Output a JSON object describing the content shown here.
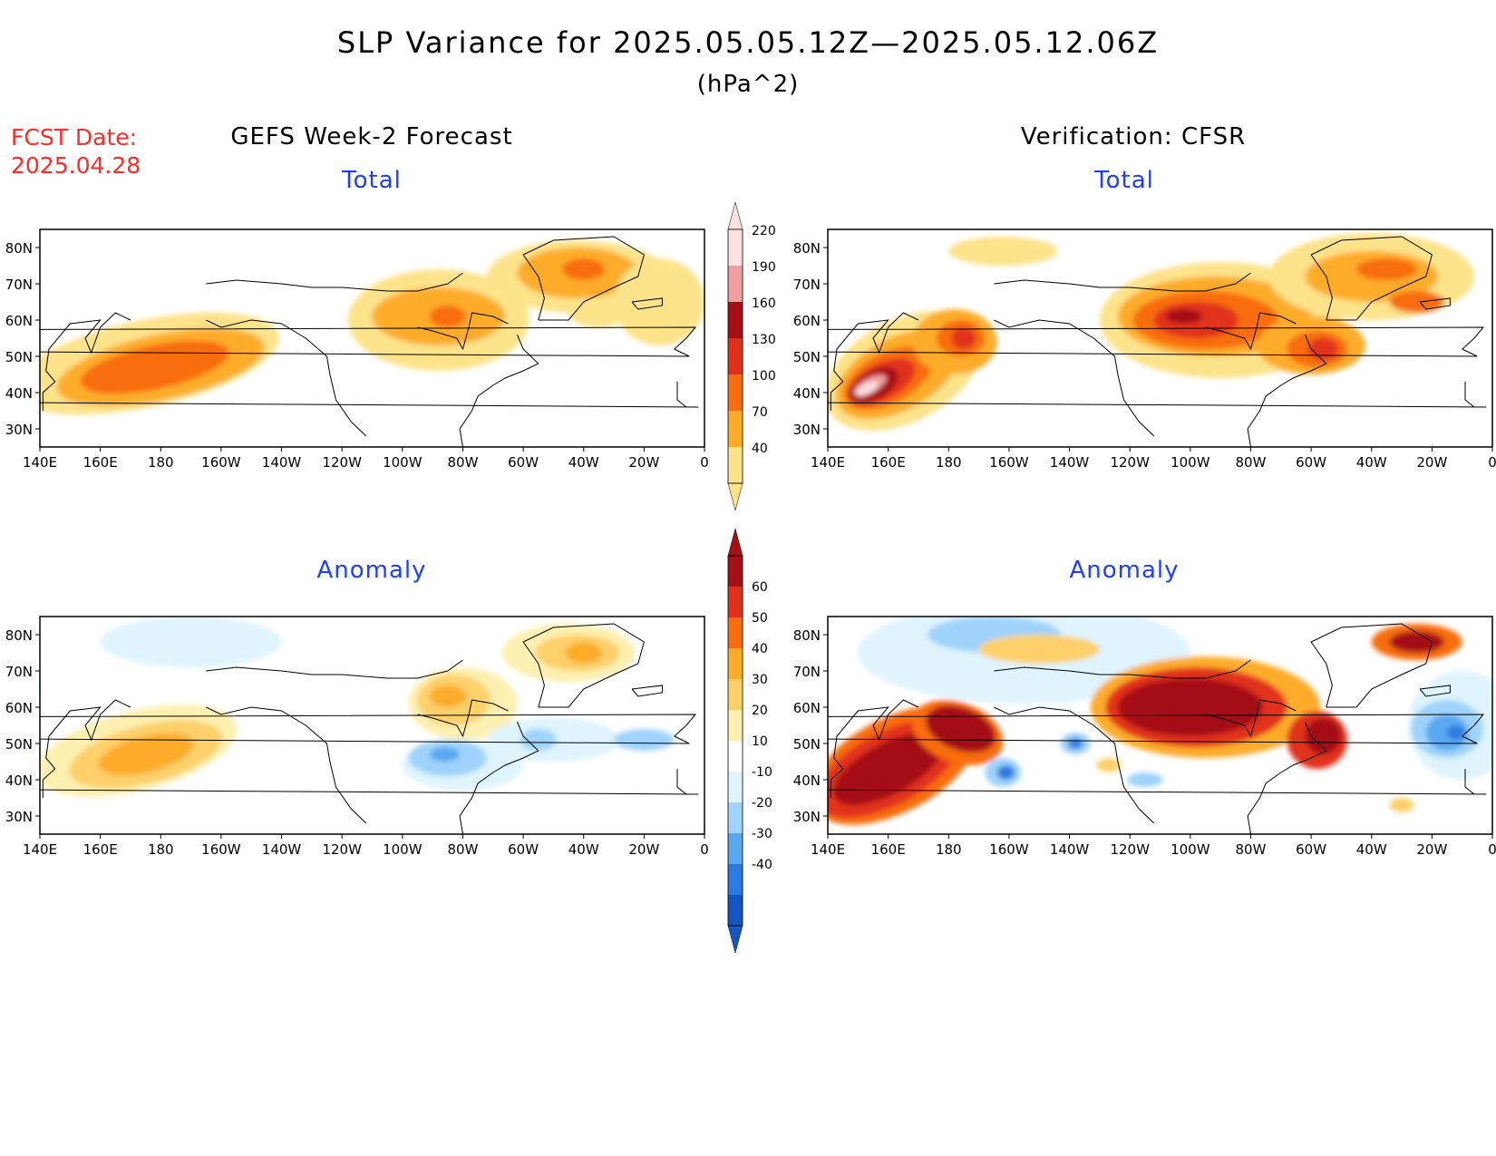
{
  "title": "SLP Variance for 2025.05.05.12Z—2025.05.12.06Z",
  "units": "(hPa^2)",
  "fcst_label": "FCST Date:",
  "fcst_date": "2025.04.28",
  "left_header": "GEFS Week-2 Forecast",
  "right_header": "Verification: CFSR",
  "panel_titles": {
    "total_left": "Total",
    "total_right": "Total",
    "anom_left": "Anomaly",
    "anom_right": "Anomaly"
  },
  "lat_labels": [
    "80N",
    "70N",
    "60N",
    "50N",
    "40N",
    "30N"
  ],
  "lon_labels": [
    "140E",
    "160E",
    "180",
    "160W",
    "140W",
    "120W",
    "100W",
    "80W",
    "60W",
    "40W",
    "20W",
    "0"
  ],
  "total_colorbar": {
    "levels": [
      40,
      70,
      100,
      130,
      160,
      190,
      220
    ],
    "colors": [
      "#fde38a",
      "#fdac2a",
      "#f86d10",
      "#e1301a",
      "#a50f15",
      "#f0a0a0",
      "#fde0e0"
    ]
  },
  "anomaly_colorbar": {
    "levels": [
      60,
      50,
      40,
      30,
      20,
      10,
      -10,
      -20,
      -30,
      -40
    ],
    "colors": [
      "#a50f15",
      "#e1301a",
      "#f86d10",
      "#fdac2a",
      "#fdd06a",
      "#fdf0b0",
      "#ffffff",
      "#dff4fd",
      "#9fd3fb",
      "#5aa8f0",
      "#2b7be0",
      "#1555c0"
    ]
  },
  "chart_data": {
    "type": "heatmap",
    "variable": "SLP Variance",
    "units": "hPa^2",
    "domain": {
      "lon_range": [
        "140E",
        "0"
      ],
      "lat_range": [
        "25N",
        "85N"
      ]
    },
    "panels": [
      {
        "name": "GEFS Week-2 Forecast Total",
        "features": [
          {
            "lon": 180,
            "lat": 47,
            "value_min": 100,
            "value_max": 130
          },
          {
            "lon": -88,
            "lat": 61,
            "value_min": 100,
            "value_max": 130
          },
          {
            "lon": -40,
            "lat": 73,
            "value_min": 100,
            "value_max": 130
          }
        ]
      },
      {
        "name": "Verification: CFSR Total",
        "features": [
          {
            "lon": 155,
            "lat": 43,
            "value_min": 190,
            "value_max": 220
          },
          {
            "lon": -175,
            "lat": 54,
            "value_min": 160,
            "value_max": 190
          },
          {
            "lon": -95,
            "lat": 58,
            "value_min": 160,
            "value_max": 190
          },
          {
            "lon": -60,
            "lat": 52,
            "value_min": 160,
            "value_max": 190
          }
        ]
      },
      {
        "name": "GEFS Week-2 Forecast Anomaly",
        "features": [
          {
            "lon": 170,
            "lat": 46,
            "value_min": 20,
            "value_max": 30
          },
          {
            "lon": -85,
            "lat": 63,
            "value_min": 20,
            "value_max": 30
          },
          {
            "lon": -40,
            "lat": 73,
            "value_min": 20,
            "value_max": 30
          },
          {
            "lon": -85,
            "lat": 46,
            "value_min": -30,
            "value_max": -20
          }
        ]
      },
      {
        "name": "Verification: CFSR Anomaly",
        "features": [
          {
            "lon": 160,
            "lat": 43,
            "value_min": 60,
            "value_max": 60
          },
          {
            "lon": -175,
            "lat": 55,
            "value_min": 60,
            "value_max": 60
          },
          {
            "lon": -95,
            "lat": 60,
            "value_min": 60,
            "value_max": 60
          },
          {
            "lon": -60,
            "lat": 52,
            "value_min": 60,
            "value_max": 60
          },
          {
            "lon": -15,
            "lat": 55,
            "value_min": -40,
            "value_max": -30
          },
          {
            "lon": -160,
            "lat": 42,
            "value_min": -40,
            "value_max": -30
          }
        ]
      }
    ]
  }
}
